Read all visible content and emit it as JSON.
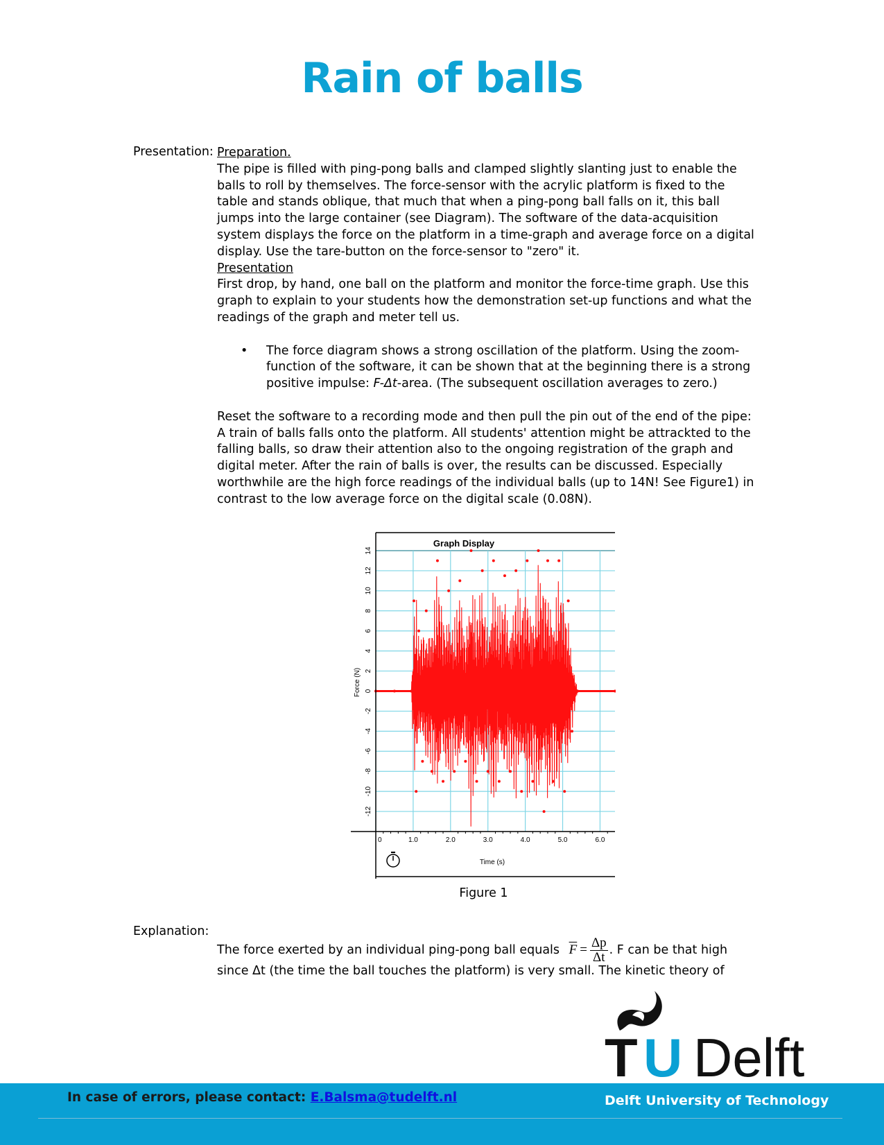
{
  "title": "Rain of balls",
  "presentation": {
    "label": "Presentation:",
    "preparation_heading": "Preparation.",
    "preparation_text": "The pipe is filled with ping-pong balls and clamped slightly slanting just to enable the balls to roll by themselves. The force-sensor with the acrylic platform is fixed to the table and stands oblique, that much that when a ping-pong ball falls on it, this ball jumps into the large container (see Diagram). The software of the data-acquisition system displays the force on the platform in a time-graph and average force on a digital display. Use the tare-button on the force-sensor to \"zero\" it.",
    "presentation_heading": "Presentation",
    "presentation_text": "First drop, by hand, one ball on the platform and monitor the force-time graph. Use this graph to explain to your students how the demonstration set-up functions and what the readings of the graph and meter tell us.",
    "bullet_a": "The force diagram shows a strong oscillation of the platform. Using the zoom-function of the software, it can be shown that at the beginning there is a strong positive impulse: ",
    "bullet_em": "F-Δt",
    "bullet_b": "-area. (The subsequent oscillation averages to zero.)",
    "reset_text": "Reset the software to a recording mode and then pull the pin out of the end of the pipe: A train of balls falls onto the platform. All students' attention might be attrackted to the falling balls, so draw their attention also to the ongoing registration of the graph and digital meter. After the rain of balls is over, the results can be discussed. Especially worthwhile are the high force readings of the individual balls (up to 14N! See Figure1) in contrast to the low average force on the digital scale (0.08N)."
  },
  "figure": {
    "caption": "Figure 1",
    "chart_data": {
      "type": "line",
      "title": "Graph Display",
      "xlabel": "Time (s)",
      "ylabel": "Force (N)",
      "xlim": [
        0,
        6.4
      ],
      "ylim": [
        -14,
        14
      ],
      "xticks": [
        "0",
        "1.0",
        "2.0",
        "3.0",
        "4.0",
        "5.0",
        "6.0"
      ],
      "yticks": [
        "-12",
        "-10",
        "-8",
        "-6",
        "-4",
        "-2",
        "0",
        "2",
        "4",
        "6",
        "8",
        "10",
        "12",
        "14"
      ],
      "series_color": "#ff1010",
      "grid_color": "#7fd6e6",
      "series": [
        {
          "x": [
            0.0,
            0.5,
            0.95,
            1.02,
            1.08,
            1.15,
            1.25,
            1.35,
            1.5,
            1.65,
            1.8,
            1.95,
            2.1,
            2.25,
            2.4,
            2.55,
            2.7,
            2.85,
            3.0,
            3.15,
            3.3,
            3.45,
            3.6,
            3.75,
            3.9,
            4.05,
            4.2,
            4.35,
            4.5,
            4.6,
            4.75,
            4.9,
            5.05,
            5.15,
            5.25,
            5.4,
            6.4
          ],
          "y": [
            0,
            0,
            0,
            9.0,
            -10.0,
            6.0,
            -7.0,
            8.0,
            -8.0,
            13.0,
            -9.0,
            10.0,
            -8.0,
            11.0,
            -7.0,
            14.0,
            -9.0,
            12.0,
            -8.0,
            13.0,
            -9.0,
            11.5,
            -8.0,
            12.0,
            -10.0,
            13.0,
            -9.0,
            14.0,
            -12.0,
            13.0,
            -9.0,
            13.0,
            -10.0,
            9.0,
            -4.0,
            0,
            0
          ]
        }
      ]
    }
  },
  "explanation": {
    "label": "Explanation:",
    "text_before": "The force exerted by an individual ping-pong ball equals",
    "formula_lhs": "F",
    "formula_num": "Δp",
    "formula_den": "Δt",
    "text_after": ". F can be that high",
    "text_line2": "since Δt (the time the ball touches the platform) is very small. The kinetic theory of"
  },
  "footer": {
    "contact_label": "In case of errors, please contact: ",
    "contact_email": "E.Balsma@tudelft.nl",
    "university": "Delft University of Technology"
  },
  "logo": {
    "letters_t": "T",
    "letters_u": "U",
    "letters_delft": "Delft"
  }
}
